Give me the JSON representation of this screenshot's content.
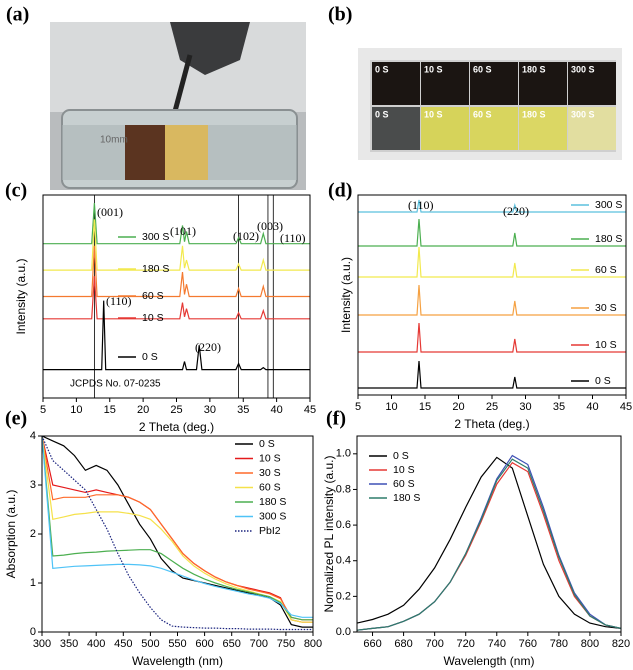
{
  "photos": {
    "a": {
      "label": "(a)",
      "text": "10mm"
    },
    "b": {
      "label": "(b)",
      "tiles": [
        "0 S",
        "10 S",
        "60 S",
        "180 S",
        "300 S"
      ]
    }
  },
  "chart_data": [
    {
      "type": "line",
      "panel_label": "(c)",
      "xlabel": "2 Theta (deg.)",
      "ylabel": "Intensity (a.u.)",
      "xlim": [
        5,
        45
      ],
      "xticks": [
        5,
        10,
        15,
        20,
        25,
        30,
        35,
        40,
        45
      ],
      "ylim": [
        0,
        100
      ],
      "legend": "inline",
      "x": [
        5,
        12.3,
        12.7,
        13.1,
        13.8,
        14.1,
        14.4,
        25.5,
        25.9,
        26.2,
        26.5,
        26.9,
        28.0,
        28.4,
        28.8,
        33.9,
        34.3,
        34.7,
        37.6,
        38.0,
        38.4,
        45
      ],
      "series": [
        {
          "name": "300 S",
          "color": "#4caf50",
          "values": [
            76,
            76,
            96,
            76,
            76,
            76,
            76,
            76,
            85,
            77,
            82,
            76,
            76,
            76,
            76,
            76,
            79,
            76,
            76,
            81,
            76,
            76
          ]
        },
        {
          "name": "180 S",
          "color": "#f2e94e",
          "values": [
            63,
            63,
            88,
            63,
            63,
            63,
            63,
            63,
            75,
            64,
            68,
            63,
            63,
            63,
            63,
            63,
            66,
            63,
            63,
            68,
            63,
            63
          ]
        },
        {
          "name": "60 S",
          "color": "#f47a30",
          "values": [
            50,
            50,
            75,
            50,
            50,
            50,
            50,
            50,
            62,
            51,
            56,
            50,
            50,
            50,
            50,
            50,
            54,
            50,
            50,
            55,
            50,
            50
          ]
        },
        {
          "name": "10 S",
          "color": "#e53935",
          "values": [
            39,
            39,
            60,
            39,
            39,
            39,
            39,
            39,
            47,
            40,
            44,
            39,
            39,
            39,
            39,
            39,
            42,
            39,
            39,
            43,
            39,
            39
          ]
        },
        {
          "name": "0 S",
          "color": "#000000",
          "values": [
            14,
            14,
            14,
            14,
            14,
            48,
            14,
            14,
            14,
            18,
            14,
            14,
            14,
            26,
            14,
            14,
            17,
            14,
            14,
            15,
            14,
            14
          ]
        }
      ],
      "reference_label": "JCPDS No. 07-0235",
      "reference_lines": [
        12.7,
        34.3,
        38.7,
        39.5
      ],
      "annotations": [
        "(001)",
        "(101)",
        "(102)",
        "(003)",
        "(110)",
        "(110)",
        "(220)"
      ]
    },
    {
      "type": "line",
      "panel_label": "(d)",
      "xlabel": "2 Theta (deg.)",
      "ylabel": "Intensity (a.u.)",
      "xlim": [
        5,
        45
      ],
      "xticks": [
        5,
        10,
        15,
        20,
        25,
        30,
        35,
        40,
        45
      ],
      "ylim": [
        0,
        100
      ],
      "legend": "right",
      "x": [
        5,
        13.8,
        14.1,
        14.4,
        28.1,
        28.4,
        28.7,
        45
      ],
      "series": [
        {
          "name": "300 S",
          "color": "#5bc0de",
          "values": [
            91.5,
            91.5,
            97.5,
            91.5,
            91.5,
            95,
            91.5,
            91.5
          ]
        },
        {
          "name": "180 S",
          "color": "#4caf50",
          "values": [
            74.5,
            74.5,
            88,
            74.5,
            74.5,
            81,
            74.5,
            74.5
          ]
        },
        {
          "name": "60 S",
          "color": "#f2e94e",
          "values": [
            59,
            59,
            74,
            59,
            59,
            66,
            59,
            59
          ]
        },
        {
          "name": "30 S",
          "color": "#f5a142",
          "values": [
            40,
            40,
            55,
            40,
            40,
            47,
            40,
            40
          ]
        },
        {
          "name": "10 S",
          "color": "#e53935",
          "values": [
            21.5,
            21.5,
            36,
            21.5,
            21.5,
            28,
            21.5,
            21.5
          ]
        },
        {
          "name": "0 S",
          "color": "#000000",
          "values": [
            3.5,
            3.5,
            17,
            3.5,
            3.5,
            9,
            3.5,
            3.5
          ]
        }
      ],
      "annotations": [
        "(110)",
        "(220)"
      ]
    },
    {
      "type": "line",
      "panel_label": "(e)",
      "xlabel": "Wavelength (nm)",
      "ylabel": "Absorption (a.u.)",
      "xlim": [
        300,
        800
      ],
      "xticks": [
        300,
        350,
        400,
        450,
        500,
        550,
        600,
        650,
        700,
        750,
        800
      ],
      "ylim": [
        0,
        4
      ],
      "yticks": [
        0,
        1,
        2,
        3,
        4
      ],
      "legend": "upper right",
      "x": [
        300,
        320,
        340,
        360,
        380,
        400,
        420,
        440,
        460,
        480,
        500,
        520,
        540,
        560,
        580,
        600,
        620,
        640,
        660,
        680,
        700,
        720,
        740,
        760,
        780,
        800
      ],
      "series": [
        {
          "name": "0 S",
          "color": "#000000",
          "values": [
            4,
            3.9,
            3.8,
            3.6,
            3.3,
            3.4,
            3.3,
            3.0,
            2.6,
            2.2,
            1.9,
            1.5,
            1.25,
            1.1,
            1.05,
            1.0,
            0.95,
            0.9,
            0.85,
            0.8,
            0.75,
            0.7,
            0.55,
            0.15,
            0.1,
            0.1
          ]
        },
        {
          "name": "10 S",
          "color": "#e41a1c",
          "values": [
            4,
            3.0,
            2.95,
            2.9,
            2.85,
            2.9,
            2.85,
            2.8,
            2.75,
            2.65,
            2.5,
            2.2,
            1.9,
            1.6,
            1.4,
            1.25,
            1.12,
            1.02,
            0.95,
            0.9,
            0.85,
            0.8,
            0.7,
            0.25,
            0.2,
            0.2
          ]
        },
        {
          "name": "30 S",
          "color": "#ff6a2a",
          "values": [
            4,
            2.7,
            2.75,
            2.75,
            2.75,
            2.8,
            2.8,
            2.8,
            2.75,
            2.65,
            2.5,
            2.2,
            1.9,
            1.6,
            1.4,
            1.25,
            1.12,
            1.02,
            0.95,
            0.88,
            0.83,
            0.78,
            0.68,
            0.3,
            0.25,
            0.25
          ]
        },
        {
          "name": "60 S",
          "color": "#f5e14a",
          "values": [
            4,
            2.3,
            2.35,
            2.4,
            2.42,
            2.45,
            2.45,
            2.45,
            2.42,
            2.38,
            2.3,
            2.1,
            1.85,
            1.55,
            1.35,
            1.2,
            1.08,
            0.98,
            0.9,
            0.84,
            0.78,
            0.72,
            0.62,
            0.25,
            0.2,
            0.2
          ]
        },
        {
          "name": "180 S",
          "color": "#4caf50",
          "values": [
            4,
            1.55,
            1.57,
            1.6,
            1.62,
            1.63,
            1.65,
            1.66,
            1.67,
            1.68,
            1.68,
            1.6,
            1.45,
            1.3,
            1.18,
            1.08,
            1.0,
            0.93,
            0.87,
            0.82,
            0.77,
            0.72,
            0.6,
            0.3,
            0.25,
            0.25
          ]
        },
        {
          "name": "300 S",
          "color": "#4fc3f7",
          "values": [
            4,
            1.3,
            1.32,
            1.34,
            1.35,
            1.36,
            1.37,
            1.38,
            1.38,
            1.37,
            1.35,
            1.3,
            1.22,
            1.14,
            1.06,
            0.99,
            0.93,
            0.88,
            0.83,
            0.78,
            0.74,
            0.69,
            0.58,
            0.35,
            0.3,
            0.3
          ]
        },
        {
          "name": "PbI2",
          "color": "#1a237e",
          "line_style": "dotted",
          "values": [
            4,
            3.5,
            3.3,
            3.1,
            2.9,
            2.5,
            2.1,
            1.6,
            1.15,
            0.8,
            0.5,
            0.25,
            0.12,
            0.1,
            0.09,
            0.08,
            0.08,
            0.07,
            0.07,
            0.06,
            0.06,
            0.06,
            0.05,
            0.05,
            0.05,
            0.05
          ]
        }
      ]
    },
    {
      "type": "line",
      "panel_label": "(f)",
      "xlabel": "Wavelength (nm)",
      "ylabel": "Normalized PL intensity (a.u.)",
      "xlim": [
        650,
        820
      ],
      "xticks": [
        660,
        680,
        700,
        720,
        740,
        760,
        780,
        800,
        820
      ],
      "ylim": [
        0,
        1.1
      ],
      "yticks": [
        {
          "value": 0,
          "label": "0.0"
        },
        0.2,
        0.4,
        0.6,
        0.8,
        {
          "value": 1,
          "label": "1.0"
        }
      ],
      "legend": "upper left",
      "x": [
        650,
        660,
        670,
        680,
        690,
        700,
        710,
        720,
        730,
        740,
        750,
        760,
        770,
        780,
        790,
        800,
        810,
        820
      ],
      "series": [
        {
          "name": "0 S",
          "color": "#000000",
          "values": [
            0.05,
            0.07,
            0.1,
            0.15,
            0.24,
            0.36,
            0.52,
            0.7,
            0.87,
            0.98,
            0.92,
            0.65,
            0.38,
            0.2,
            0.1,
            0.05,
            0.03,
            0.02
          ]
        },
        {
          "name": "10 S",
          "color": "#e53935",
          "values": [
            0.01,
            0.02,
            0.03,
            0.06,
            0.1,
            0.17,
            0.28,
            0.43,
            0.62,
            0.83,
            0.95,
            0.9,
            0.66,
            0.4,
            0.2,
            0.09,
            0.04,
            0.02
          ]
        },
        {
          "name": "60 S",
          "color": "#3f51b5",
          "values": [
            0.01,
            0.02,
            0.03,
            0.06,
            0.1,
            0.17,
            0.28,
            0.44,
            0.64,
            0.86,
            0.99,
            0.94,
            0.7,
            0.43,
            0.22,
            0.1,
            0.04,
            0.02
          ]
        },
        {
          "name": "180 S",
          "color": "#2e7d6b",
          "values": [
            0.01,
            0.02,
            0.03,
            0.06,
            0.1,
            0.17,
            0.28,
            0.44,
            0.63,
            0.85,
            0.97,
            0.92,
            0.68,
            0.42,
            0.21,
            0.09,
            0.04,
            0.02
          ]
        }
      ]
    }
  ]
}
